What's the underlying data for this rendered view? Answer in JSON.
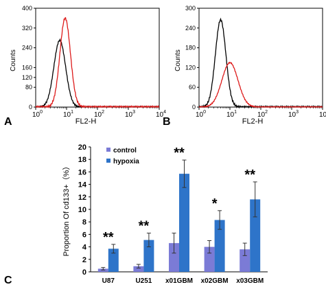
{
  "chart_data": [
    {
      "panel": "A",
      "type": "line",
      "xlabel": "FL2-H",
      "ylabel": "Counts",
      "xscale": "log",
      "xlim": [
        1,
        10000
      ],
      "ylim": [
        0,
        400
      ],
      "yticks": [
        0,
        80,
        120,
        160,
        240,
        320,
        400
      ],
      "series": [
        {
          "color": "#000000",
          "peak_x": 6,
          "peak_y": 270,
          "log_sigma": 0.19
        },
        {
          "color": "#dd1a1a",
          "peak_x": 9,
          "peak_y": 360,
          "log_sigma": 0.17
        }
      ]
    },
    {
      "panel": "B",
      "type": "line",
      "xlabel": "FL2-H",
      "ylabel": "Counts",
      "xscale": "log",
      "xlim": [
        1,
        10000
      ],
      "ylim": [
        0,
        300
      ],
      "yticks": [
        0,
        60,
        120,
        180,
        240,
        300
      ],
      "series": [
        {
          "color": "#000000",
          "peak_x": 5,
          "peak_y": 265,
          "log_sigma": 0.17
        },
        {
          "color": "#dd1a1a",
          "peak_x": 10,
          "peak_y": 135,
          "log_sigma": 0.26
        }
      ]
    },
    {
      "panel": "C",
      "type": "bar",
      "ylabel": "Proportion Of cd133+（%）",
      "ylim": [
        0,
        20
      ],
      "yticks": [
        0,
        2,
        4,
        6,
        8,
        10,
        12,
        14,
        16,
        18,
        20
      ],
      "categories": [
        "U87",
        "U251",
        "x01GBM",
        "x02GBM",
        "x03GBM"
      ],
      "series": [
        {
          "name": "control",
          "color": "#7b7bd6",
          "values": [
            0.5,
            0.9,
            4.6,
            4.0,
            3.6
          ],
          "errors": [
            0.2,
            0.3,
            1.6,
            1.0,
            1.0
          ]
        },
        {
          "name": "hypoxia",
          "color": "#2e74c9",
          "values": [
            3.7,
            5.1,
            15.7,
            8.3,
            11.6
          ],
          "errors": [
            0.7,
            1.1,
            2.2,
            1.5,
            2.8
          ]
        }
      ],
      "significance": [
        "**",
        "**",
        "**",
        "*",
        "**"
      ]
    }
  ]
}
